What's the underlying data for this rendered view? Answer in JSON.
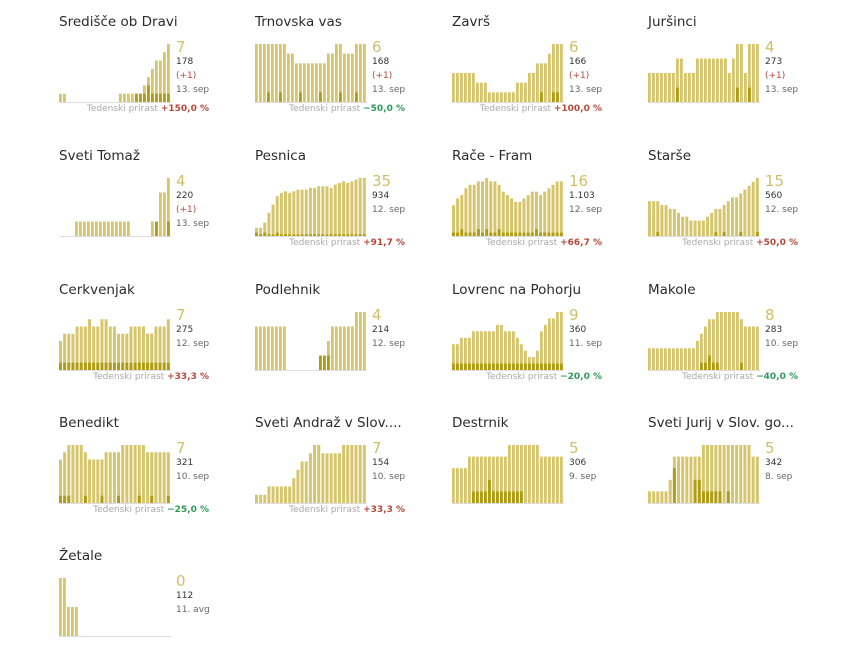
{
  "colors": {
    "bar": "#d6c56b",
    "barDark": "#b09c12",
    "baseline": "#dddddd",
    "up": "#b24a3a",
    "down": "#2e9a5a",
    "label": "#aaaaaa"
  },
  "growth_label": "Tedenski prirast",
  "chart_data": [
    {
      "type": "bar",
      "name": "Središče ob Dravi",
      "active": "7",
      "total": "178",
      "new": "(+1)",
      "date": "13. sep",
      "growth": "+150,0 %",
      "growth_dir": "up",
      "values": [
        1,
        1,
        0,
        0,
        0,
        0,
        0,
        0,
        0,
        0,
        0,
        0,
        0,
        0,
        0,
        1,
        1,
        1,
        1,
        1,
        1,
        2,
        3,
        4,
        5,
        5,
        6,
        7
      ],
      "dark": [
        0,
        0,
        0,
        0,
        0,
        0,
        0,
        0,
        0,
        0,
        0,
        0,
        0,
        0,
        0,
        0,
        0,
        0,
        0,
        1,
        1,
        1,
        2,
        1,
        1,
        1,
        1,
        1
      ],
      "max": 7
    },
    {
      "type": "bar",
      "name": "Trnovska vas",
      "active": "6",
      "total": "168",
      "new": "(+1)",
      "date": "13. sep",
      "growth": "−50,0 %",
      "growth_dir": "down",
      "values": [
        6,
        6,
        6,
        6,
        6,
        6,
        6,
        6,
        5,
        5,
        4,
        4,
        4,
        4,
        4,
        4,
        4,
        4,
        5,
        5,
        6,
        6,
        5,
        5,
        5,
        6,
        6,
        6
      ],
      "dark": [
        0,
        0,
        0,
        1,
        0,
        0,
        1,
        0,
        0,
        0,
        0,
        1,
        0,
        0,
        0,
        0,
        1,
        0,
        0,
        0,
        0,
        1,
        0,
        0,
        0,
        1,
        0,
        0
      ],
      "max": 6
    },
    {
      "type": "bar",
      "name": "Završ",
      "active": "6",
      "total": "166",
      "new": "(+1)",
      "date": "13. sep",
      "growth": "+100,0 %",
      "growth_dir": "up",
      "values": [
        3,
        3,
        3,
        3,
        3,
        3,
        2,
        2,
        2,
        1,
        1,
        1,
        1,
        1,
        1,
        1,
        2,
        2,
        2,
        3,
        3,
        4,
        4,
        4,
        5,
        6,
        6,
        6
      ],
      "dark": [
        0,
        0,
        0,
        0,
        0,
        0,
        0,
        0,
        0,
        0,
        0,
        0,
        0,
        0,
        0,
        0,
        0,
        0,
        0,
        0,
        0,
        0,
        1,
        0,
        0,
        1,
        1,
        0
      ],
      "max": 6
    },
    {
      "type": "bar",
      "name": "Juršinci",
      "active": "4",
      "total": "273",
      "new": "(+1)",
      "date": "13. sep",
      "growth": "",
      "growth_dir": "up",
      "values": [
        2,
        2,
        2,
        2,
        2,
        2,
        2,
        3,
        3,
        2,
        2,
        2,
        3,
        3,
        3,
        3,
        3,
        3,
        3,
        3,
        2,
        3,
        4,
        4,
        2,
        4,
        4,
        4
      ],
      "dark": [
        0,
        0,
        0,
        0,
        0,
        0,
        0,
        1,
        0,
        0,
        0,
        0,
        0,
        0,
        0,
        0,
        0,
        0,
        0,
        0,
        0,
        0,
        1,
        0,
        0,
        1,
        0,
        0
      ],
      "max": 4
    },
    {
      "type": "bar",
      "name": "Sveti Tomaž",
      "active": "4",
      "total": "220",
      "new": "(+1)",
      "date": "13. sep",
      "growth": "",
      "growth_dir": "up",
      "values": [
        0,
        0,
        0,
        0,
        1,
        1,
        1,
        1,
        1,
        1,
        1,
        1,
        1,
        1,
        1,
        1,
        1,
        1,
        0,
        0,
        0,
        0,
        0,
        1,
        1,
        3,
        3,
        4
      ],
      "dark": [
        0,
        0,
        0,
        0,
        0,
        0,
        0,
        0,
        0,
        0,
        0,
        0,
        0,
        0,
        0,
        0,
        0,
        0,
        0,
        0,
        0,
        0,
        0,
        0,
        1,
        0,
        0,
        1
      ],
      "max": 4
    },
    {
      "type": "bar",
      "name": "Pesnica",
      "active": "35",
      "total": "934",
      "new": "",
      "date": "12. sep",
      "growth": "+91,7 %",
      "growth_dir": "up",
      "values": [
        5,
        5,
        8,
        14,
        19,
        24,
        26,
        27,
        26,
        27,
        28,
        28,
        28,
        29,
        29,
        30,
        30,
        30,
        29,
        31,
        32,
        33,
        32,
        33,
        34,
        35,
        35
      ],
      "dark": [
        2,
        1,
        2,
        1,
        1,
        2,
        1,
        1,
        1,
        1,
        1,
        1,
        1,
        1,
        1,
        1,
        1,
        1,
        1,
        1,
        1,
        1,
        1,
        1,
        1,
        1,
        1
      ],
      "max": 35
    },
    {
      "type": "bar",
      "name": "Rače - Fram",
      "active": "16",
      "total": "1.103",
      "new": "",
      "date": "12. sep",
      "growth": "+66,7 %",
      "growth_dir": "up",
      "values": [
        9,
        11,
        12,
        14,
        15,
        15,
        16,
        16,
        17,
        16,
        16,
        15,
        13,
        12,
        11,
        10,
        10,
        11,
        12,
        13,
        13,
        12,
        13,
        14,
        15,
        16,
        16
      ],
      "dark": [
        1,
        1,
        2,
        1,
        1,
        1,
        2,
        1,
        2,
        1,
        1,
        2,
        1,
        1,
        1,
        1,
        1,
        1,
        1,
        1,
        2,
        1,
        1,
        1,
        1,
        1,
        1
      ],
      "max": 17
    },
    {
      "type": "bar",
      "name": "Starše",
      "active": "15",
      "total": "560",
      "new": "",
      "date": "12. sep",
      "growth": "+50,0 %",
      "growth_dir": "up",
      "values": [
        9,
        9,
        9,
        8,
        8,
        7,
        7,
        6,
        5,
        5,
        4,
        4,
        4,
        4,
        5,
        6,
        7,
        7,
        8,
        9,
        10,
        10,
        11,
        12,
        13,
        14,
        15
      ],
      "dark": [
        0,
        0,
        1,
        0,
        0,
        0,
        0,
        0,
        0,
        0,
        0,
        0,
        0,
        0,
        0,
        0,
        1,
        0,
        1,
        0,
        0,
        0,
        1,
        0,
        0,
        0,
        1
      ],
      "max": 15
    },
    {
      "type": "bar",
      "name": "Cerkvenjak",
      "active": "7",
      "total": "275",
      "new": "",
      "date": "12. sep",
      "growth": "+33,3 %",
      "growth_dir": "up",
      "values": [
        4,
        5,
        5,
        5,
        6,
        6,
        6,
        7,
        6,
        6,
        7,
        7,
        6,
        6,
        5,
        5,
        5,
        6,
        6,
        6,
        6,
        5,
        5,
        6,
        6,
        6,
        7
      ],
      "dark": [
        1,
        1,
        1,
        1,
        1,
        1,
        1,
        1,
        1,
        1,
        1,
        1,
        1,
        1,
        1,
        1,
        1,
        1,
        1,
        1,
        1,
        1,
        1,
        1,
        1,
        1,
        1
      ],
      "max": 8
    },
    {
      "type": "bar",
      "name": "Podlehnik",
      "active": "4",
      "total": "214",
      "new": "",
      "date": "12. sep",
      "growth": "",
      "growth_dir": "up",
      "values": [
        3,
        3,
        3,
        3,
        3,
        3,
        3,
        3,
        0,
        0,
        0,
        0,
        0,
        0,
        0,
        0,
        1,
        1,
        2,
        3,
        3,
        3,
        3,
        3,
        3,
        4,
        4,
        4
      ],
      "dark": [
        0,
        0,
        0,
        0,
        0,
        0,
        0,
        0,
        0,
        0,
        0,
        0,
        0,
        0,
        0,
        0,
        1,
        1,
        1,
        0,
        0,
        0,
        0,
        0,
        0,
        0,
        0,
        0
      ],
      "max": 4
    },
    {
      "type": "bar",
      "name": "Lovrenc na Pohorju",
      "active": "9",
      "total": "360",
      "new": "",
      "date": "11. sep",
      "growth": "−20,0 %",
      "growth_dir": "down",
      "values": [
        4,
        4,
        5,
        5,
        5,
        6,
        6,
        6,
        6,
        6,
        6,
        7,
        7,
        6,
        6,
        6,
        5,
        4,
        3,
        2,
        2,
        3,
        6,
        7,
        8,
        8,
        9,
        9
      ],
      "dark": [
        1,
        1,
        1,
        1,
        1,
        1,
        1,
        1,
        1,
        1,
        1,
        1,
        1,
        1,
        1,
        1,
        1,
        1,
        1,
        1,
        1,
        1,
        1,
        1,
        1,
        1,
        1,
        1
      ],
      "max": 9
    },
    {
      "type": "bar",
      "name": "Makole",
      "active": "8",
      "total": "283",
      "new": "",
      "date": "10. sep",
      "growth": "−40,0 %",
      "growth_dir": "down",
      "values": [
        3,
        3,
        3,
        3,
        3,
        3,
        3,
        3,
        3,
        3,
        3,
        3,
        4,
        5,
        6,
        7,
        7,
        8,
        8,
        8,
        8,
        8,
        8,
        7,
        6,
        6,
        6,
        6
      ],
      "dark": [
        0,
        0,
        0,
        0,
        0,
        0,
        0,
        0,
        0,
        0,
        0,
        0,
        0,
        1,
        1,
        2,
        1,
        1,
        0,
        0,
        0,
        0,
        0,
        1,
        0,
        0,
        0,
        0
      ],
      "max": 8
    },
    {
      "type": "bar",
      "name": "Benedikt",
      "active": "7",
      "total": "321",
      "new": "",
      "date": "10. sep",
      "growth": "−25,0 %",
      "growth_dir": "down",
      "values": [
        6,
        7,
        8,
        8,
        8,
        8,
        7,
        6,
        6,
        6,
        6,
        7,
        7,
        7,
        7,
        8,
        8,
        8,
        8,
        8,
        8,
        7,
        7,
        7,
        7,
        7,
        7
      ],
      "dark": [
        1,
        1,
        1,
        0,
        0,
        0,
        1,
        0,
        0,
        0,
        1,
        0,
        0,
        0,
        1,
        0,
        0,
        0,
        0,
        1,
        0,
        0,
        1,
        0,
        0,
        0,
        1
      ],
      "max": 8
    },
    {
      "type": "bar",
      "name": "Sveti Andraž v Slov....",
      "active": "7",
      "total": "154",
      "new": "",
      "date": "10. sep",
      "growth": "+33,3 %",
      "growth_dir": "up",
      "values": [
        1,
        1,
        1,
        2,
        2,
        2,
        2,
        2,
        2,
        3,
        4,
        5,
        5,
        6,
        7,
        7,
        6,
        6,
        6,
        6,
        6,
        7,
        7,
        7,
        7,
        7,
        7
      ],
      "dark": [
        0,
        0,
        0,
        0,
        0,
        0,
        0,
        0,
        0,
        0,
        0,
        0,
        0,
        0,
        0,
        0,
        0,
        0,
        0,
        0,
        0,
        0,
        0,
        0,
        0,
        0,
        0
      ],
      "max": 7
    },
    {
      "type": "bar",
      "name": "Destrnik",
      "active": "5",
      "total": "306",
      "new": "",
      "date": "9. sep",
      "growth": "",
      "growth_dir": "up",
      "values": [
        3,
        3,
        3,
        3,
        4,
        4,
        4,
        4,
        4,
        4,
        4,
        4,
        4,
        4,
        5,
        5,
        5,
        5,
        5,
        5,
        5,
        5,
        4,
        4,
        4,
        4,
        4,
        4
      ],
      "dark": [
        0,
        0,
        0,
        0,
        0,
        1,
        1,
        1,
        1,
        2,
        1,
        1,
        1,
        1,
        1,
        1,
        1,
        1,
        0,
        0,
        0,
        0,
        0,
        0,
        0,
        0,
        0,
        0
      ],
      "max": 5
    },
    {
      "type": "bar",
      "name": "Sveti Jurij v Slov. go...",
      "active": "5",
      "total": "342",
      "new": "",
      "date": "8. sep",
      "growth": "",
      "growth_dir": "up",
      "values": [
        1,
        1,
        1,
        1,
        1,
        2,
        4,
        4,
        4,
        4,
        4,
        4,
        4,
        5,
        5,
        5,
        5,
        5,
        5,
        5,
        5,
        5,
        5,
        5,
        5,
        4,
        4
      ],
      "dark": [
        0,
        0,
        0,
        0,
        0,
        0,
        3,
        0,
        0,
        0,
        0,
        2,
        2,
        1,
        1,
        1,
        1,
        1,
        0,
        1,
        0,
        0,
        0,
        0,
        0,
        0,
        0
      ],
      "max": 5
    },
    {
      "type": "bar",
      "name": "Žetale",
      "active": "0",
      "total": "112",
      "new": "",
      "date": "11. avg",
      "growth": "",
      "growth_dir": "up",
      "values": [
        2,
        2,
        1,
        1,
        1,
        0,
        0,
        0,
        0,
        0,
        0,
        0,
        0,
        0,
        0,
        0,
        0,
        0,
        0,
        0,
        0,
        0,
        0,
        0,
        0,
        0,
        0,
        0
      ],
      "dark": [
        0,
        0,
        0,
        0,
        0,
        0,
        0,
        0,
        0,
        0,
        0,
        0,
        0,
        0,
        0,
        0,
        0,
        0,
        0,
        0,
        0,
        0,
        0,
        0,
        0,
        0,
        0,
        0
      ],
      "max": 2
    }
  ]
}
